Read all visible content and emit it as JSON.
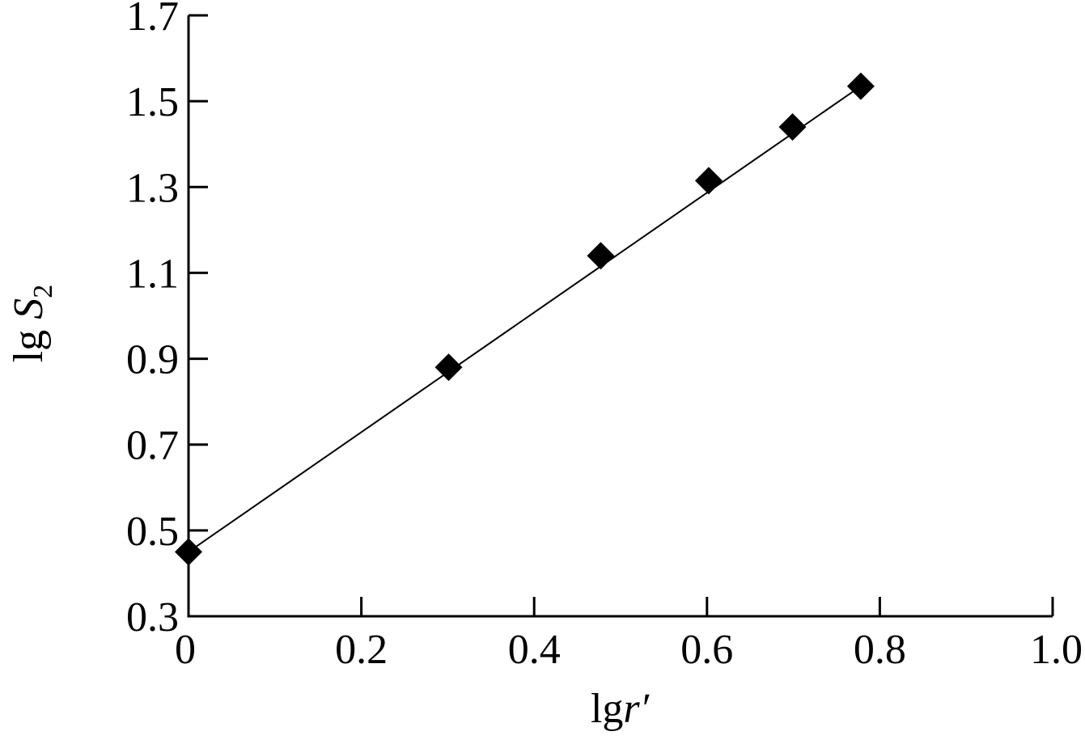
{
  "chart_data": {
    "type": "scatter",
    "xlabel_prefix": "lg",
    "xlabel_var": "r′",
    "ylabel_prefix": "lg ",
    "ylabel_var": "S",
    "ylabel_sub": "2",
    "xlim": [
      0,
      1.0
    ],
    "ylim": [
      0.3,
      1.7
    ],
    "xticks": [
      0,
      0.2,
      0.4,
      0.6,
      0.8,
      1.0
    ],
    "xtick_labels": [
      "0",
      "0.2",
      "0.4",
      "0.6",
      "0.8",
      "1.0"
    ],
    "yticks": [
      0.3,
      0.5,
      0.7,
      0.9,
      1.1,
      1.3,
      1.5,
      1.7
    ],
    "ytick_labels": [
      "0.3",
      "0.5",
      "0.7",
      "0.9",
      "1.1",
      "1.3",
      "1.5",
      "1.7"
    ],
    "grid": false,
    "marker": "diamond",
    "series": [
      {
        "x": [
          0,
          0.301,
          0.477,
          0.602,
          0.699,
          0.778
        ],
        "y": [
          0.45,
          0.88,
          1.14,
          1.315,
          1.44,
          1.535
        ]
      }
    ],
    "fit_line": {
      "x": [
        0,
        0.778
      ],
      "y": [
        0.45,
        1.535
      ]
    }
  }
}
